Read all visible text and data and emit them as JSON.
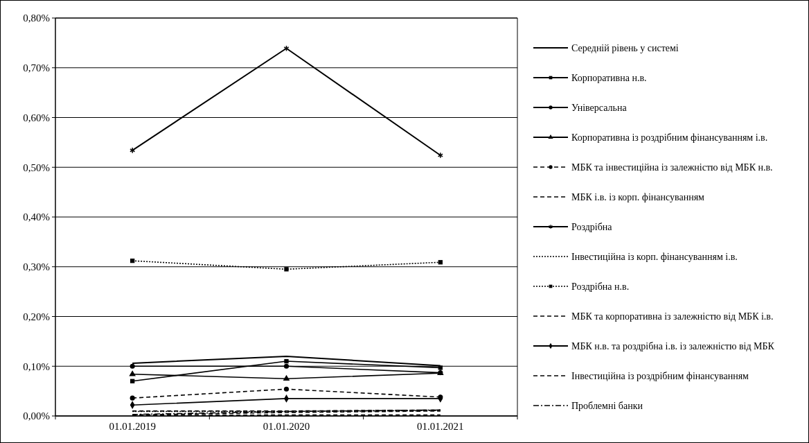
{
  "chart_data": {
    "type": "line",
    "categories": [
      "01.01.2019",
      "01.01.2020",
      "01.01.2021"
    ],
    "ylim": [
      0,
      0.8
    ],
    "yticks": [
      {
        "value": 0,
        "label": "0,00%"
      },
      {
        "value": 0.1,
        "label": "0,10%"
      },
      {
        "value": 0.2,
        "label": "0,20%"
      },
      {
        "value": 0.3,
        "label": "0,30%"
      },
      {
        "value": 0.4,
        "label": "0,40%"
      },
      {
        "value": 0.5,
        "label": "0,50%"
      },
      {
        "value": 0.6,
        "label": "0,60%"
      },
      {
        "value": 0.7,
        "label": "0,70%"
      },
      {
        "value": 0.8,
        "label": "0,80%"
      }
    ],
    "grid": "y",
    "legend": "right",
    "series": [
      {
        "name": "Середній рівень у системі",
        "color": "#000000",
        "line_style": "solid",
        "marker": "none",
        "values": [
          0.106,
          0.12,
          0.101
        ]
      },
      {
        "name": "Корпоративна н.в.",
        "color": "#000000",
        "line_style": "solid",
        "marker": "square",
        "values": [
          0.07,
          0.11,
          0.097
        ]
      },
      {
        "name": "Універсальна",
        "color": "#000000",
        "line_style": "solid",
        "marker": "circle",
        "values": [
          0.1,
          0.1,
          0.087
        ]
      },
      {
        "name": "Корпоративна із роздрібним фінансуванням і.в.",
        "color": "#000000",
        "line_style": "solid",
        "marker": "triangle",
        "values": [
          0.084,
          0.075,
          0.086
        ]
      },
      {
        "name": "МБК та інвестиційна із залежністю від МБК н.в.",
        "color": "#000000",
        "line_style": "dashed",
        "marker": "circle",
        "values": [
          0.036,
          0.054,
          0.038
        ]
      },
      {
        "name": "МБК і.в. із корп. фінансуванням",
        "color": "#000000",
        "line_style": "dashed",
        "marker": "none",
        "values": [
          0.002,
          0.007,
          0.01
        ]
      },
      {
        "name": "Роздрібна",
        "color": "#000000",
        "line_style": "solid",
        "marker": "cross",
        "values": [
          0.534,
          0.739,
          0.524
        ]
      },
      {
        "name": "Інвестиційна із корп. фінансуванням і.в.",
        "color": "#000000",
        "line_style": "dotted",
        "marker": "none",
        "values": [
          0.009,
          0.009,
          0.011
        ]
      },
      {
        "name": "Роздрібна н.в.",
        "color": "#000000",
        "line_style": "dotted",
        "marker": "square",
        "values": [
          0.312,
          0.295,
          0.309
        ]
      },
      {
        "name": "МБК та корпоративна із залежністю від МБК і.в.",
        "color": "#000000",
        "line_style": "dashed",
        "marker": "none",
        "values": [
          0.001,
          0.002,
          0.002
        ]
      },
      {
        "name": "МБК н.в. та роздрібна і.в. із залежністю від МБК",
        "color": "#000000",
        "line_style": "solid",
        "marker": "diamond",
        "values": [
          0.022,
          0.035,
          0.035
        ]
      },
      {
        "name": "Інвестиційна із роздрібним фінансуванням",
        "color": "#000000",
        "line_style": "dashed",
        "marker": "none",
        "values": [
          0.01,
          0.01,
          0.012
        ]
      },
      {
        "name": "Проблемні банки",
        "color": "#000000",
        "line_style": "dashdot",
        "marker": "none",
        "values": [
          0.003,
          0.009,
          0.012
        ]
      }
    ]
  }
}
